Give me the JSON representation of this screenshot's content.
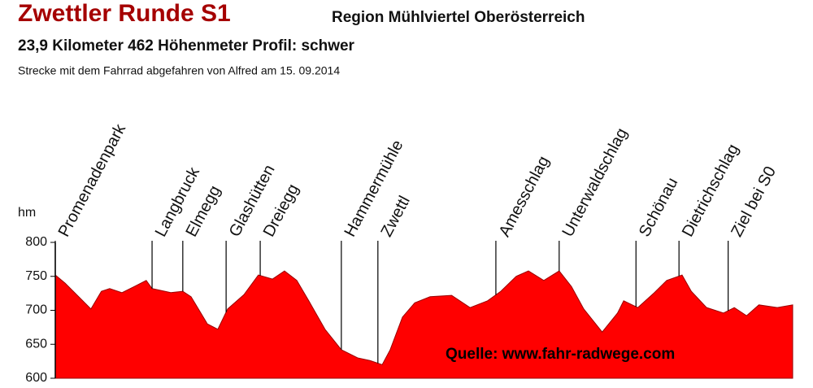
{
  "chart_data": {
    "type": "area",
    "title": "Zwettler Runde S1",
    "region": "Region Mühlviertel Oberösterreich",
    "subtitle": "23,9 Kilometer  462 Höhenmeter  Profil: schwer",
    "note": "Strecke mit dem Fahrrad abgefahren von Alfred am 15. 09.2014",
    "y_label": "hm",
    "source": "Quelle: www.fahr-radwege.com",
    "color": "#ff0000",
    "ylim": [
      600,
      800
    ],
    "yticks": [
      600,
      650,
      700,
      750,
      800
    ],
    "xlim": [
      0,
      24
    ],
    "x": [
      0,
      0.32,
      0.85,
      1.16,
      1.5,
      1.77,
      2.17,
      2.57,
      2.96,
      3.15,
      3.76,
      4.15,
      4.42,
      4.95,
      5.29,
      5.61,
      6.14,
      6.61,
      7.07,
      7.46,
      7.86,
      8.25,
      8.78,
      9.31,
      9.84,
      10.24,
      10.64,
      10.9,
      11.3,
      11.7,
      12.2,
      12.9,
      13.5,
      14.07,
      14.5,
      15.0,
      15.4,
      15.9,
      16.4,
      16.8,
      17.2,
      17.8,
      18.3,
      18.5,
      18.96,
      19.5,
      19.9,
      20.4,
      20.7,
      21.2,
      21.75,
      22.1,
      22.5,
      22.9,
      23.5,
      24.0
    ],
    "values": [
      752,
      740,
      716,
      702,
      728,
      732,
      726,
      735,
      744,
      732,
      726,
      728,
      720,
      680,
      672,
      702,
      723,
      752,
      746,
      758,
      744,
      714,
      672,
      642,
      630,
      626,
      620,
      642,
      690,
      711,
      720,
      722,
      704,
      714,
      728,
      750,
      758,
      744,
      758,
      735,
      702,
      668,
      696,
      714,
      704,
      726,
      744,
      752,
      728,
      704,
      696,
      704,
      692,
      708,
      704,
      708
    ],
    "markers": [
      {
        "label": "Promenadenpark",
        "x": 0
      },
      {
        "label": "Langbruck",
        "x": 3.15
      },
      {
        "label": "Elmegg",
        "x": 4.15
      },
      {
        "label": "Glashütten",
        "x": 5.56
      },
      {
        "label": "Dreiegg",
        "x": 6.67
      },
      {
        "label": "Hammermühle",
        "x": 9.31
      },
      {
        "label": "Zwettl",
        "x": 10.5
      },
      {
        "label": "Amesschlag",
        "x": 14.34
      },
      {
        "label": "Unterwaldschlag",
        "x": 16.4
      },
      {
        "label": "Schönau",
        "x": 18.9
      },
      {
        "label": "Dietrichschlag",
        "x": 20.3
      },
      {
        "label": "Ziel bei S0",
        "x": 21.9
      }
    ]
  }
}
